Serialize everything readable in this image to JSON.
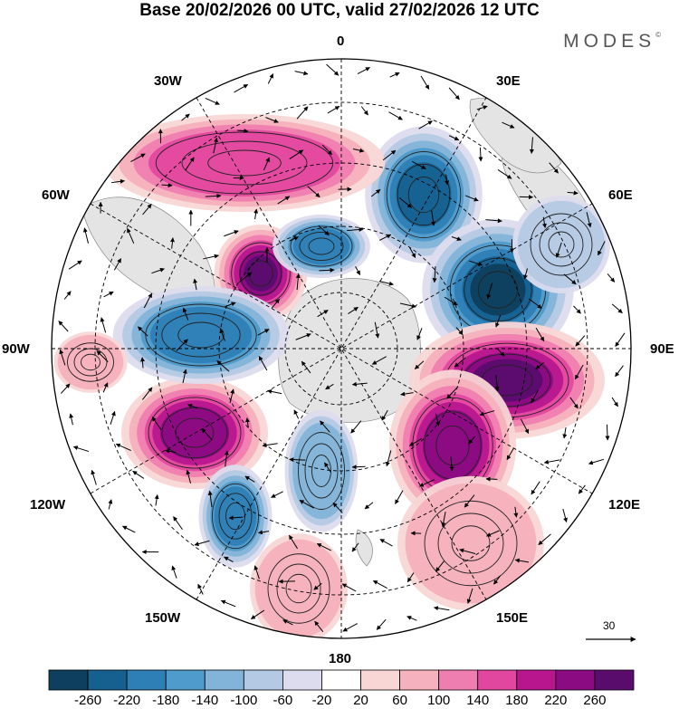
{
  "title": "Base 20/02/2026 00 UTC, valid 27/02/2026 12 UTC",
  "brand": "MODES",
  "brand_mark": "©",
  "longitude_labels": {
    "top": "0",
    "bottom": "180",
    "left": "90W",
    "right": "90E",
    "n30w": "30W",
    "n30e": "30E",
    "n60w": "60W",
    "n60e": "60E",
    "n120w": "120W",
    "n120e": "120E",
    "n150w": "150W",
    "n150e": "150E"
  },
  "vector_reference": {
    "label": "30"
  },
  "colorbar": {
    "ticks": [
      "-260",
      "-220",
      "-180",
      "-140",
      "-100",
      "-60",
      "-20",
      "20",
      "60",
      "100",
      "140",
      "180",
      "220",
      "260"
    ],
    "colors": [
      "#0e3f5e",
      "#15608f",
      "#2d7fb6",
      "#4f9bcb",
      "#82b3d8",
      "#b4c9e4",
      "#dcdcee",
      "#ffffff",
      "#f9d6d6",
      "#f5b1bd",
      "#ef7eb0",
      "#e2479f",
      "#b8168f",
      "#8a0b82",
      "#5a0c6d"
    ]
  },
  "anomaly_centers": [
    {
      "sign": "neg",
      "intensity": 0.9
    },
    {
      "sign": "pos",
      "intensity": 1.0
    },
    {
      "sign": "neg",
      "intensity": 1.0
    },
    {
      "sign": "pos",
      "intensity": 1.0
    },
    {
      "sign": "pos",
      "intensity": 0.85
    },
    {
      "sign": "neg",
      "intensity": 0.65
    },
    {
      "sign": "pos",
      "intensity": 0.9
    },
    {
      "sign": "neg",
      "intensity": 0.7
    },
    {
      "sign": "neg",
      "intensity": 0.75
    },
    {
      "sign": "pos",
      "intensity": 0.5
    },
    {
      "sign": "neg",
      "intensity": 0.45
    },
    {
      "sign": "pos",
      "intensity": 0.35
    },
    {
      "sign": "neg",
      "intensity": 0.35
    },
    {
      "sign": "pos",
      "intensity": 0.35
    },
    {
      "sign": "pos",
      "intensity": 0.3
    }
  ]
}
